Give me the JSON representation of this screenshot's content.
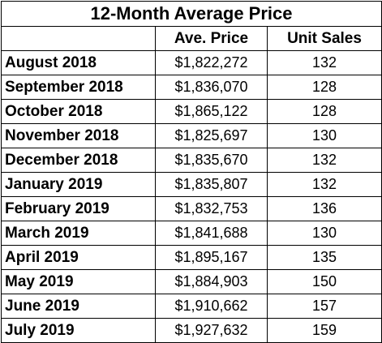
{
  "chart_data": {
    "type": "table",
    "title": "12-Month Average Price",
    "columns": [
      "",
      "Ave. Price",
      "Unit Sales"
    ],
    "rows": [
      {
        "month": "August 2018",
        "price": "$1,822,272",
        "sales": "132"
      },
      {
        "month": "September 2018",
        "price": "$1,836,070",
        "sales": "128"
      },
      {
        "month": "October 2018",
        "price": "$1,865,122",
        "sales": "128"
      },
      {
        "month": "November 2018",
        "price": "$1,825,697",
        "sales": "130"
      },
      {
        "month": "December 2018",
        "price": "$1,835,670",
        "sales": "132"
      },
      {
        "month": "January 2019",
        "price": "$1,835,807",
        "sales": "132"
      },
      {
        "month": "February 2019",
        "price": "$1,832,753",
        "sales": "136"
      },
      {
        "month": "March 2019",
        "price": "$1,841,688",
        "sales": "130"
      },
      {
        "month": "April 2019",
        "price": "$1,895,167",
        "sales": "135"
      },
      {
        "month": "May 2019",
        "price": "$1,884,903",
        "sales": "150"
      },
      {
        "month": "June 2019",
        "price": "$1,910,662",
        "sales": "157"
      },
      {
        "month": "July 2019",
        "price": "$1,927,632",
        "sales": "159"
      }
    ]
  }
}
